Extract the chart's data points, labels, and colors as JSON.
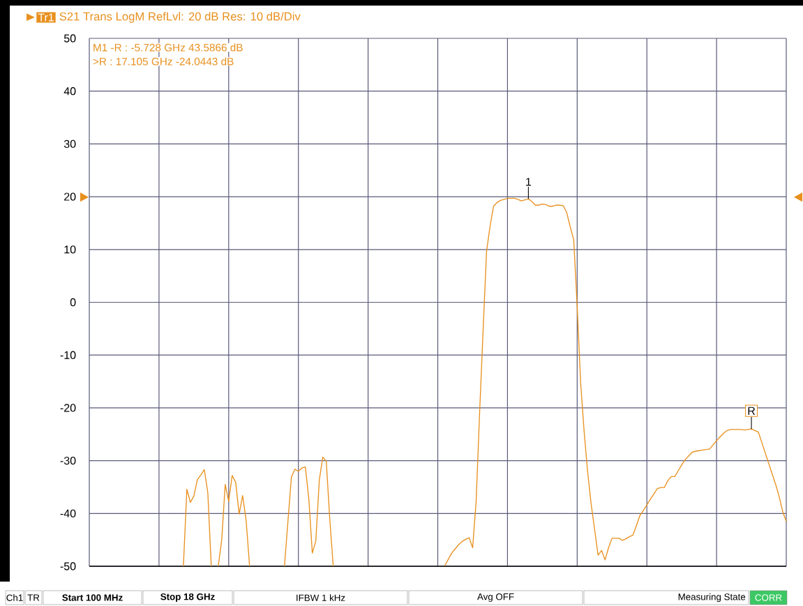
{
  "chart_data": {
    "type": "line",
    "title": "S21 Trans LogM RefLvl: 20  dB Res: 10  dB/Div",
    "categories": [
      null,
      null,
      null,
      null,
      null,
      null,
      null,
      null,
      null,
      null,
      null,
      null,
      null,
      null,
      null,
      null,
      null,
      null,
      null,
      null,
      null,
      null,
      null,
      null,
      null,
      null,
      null,
      null,
      null,
      null,
      null,
      null,
      null,
      null,
      null,
      null,
      null,
      null,
      null,
      null,
      null,
      null,
      null,
      null,
      null,
      null,
      null,
      null,
      null,
      null,
      null,
      null,
      null,
      null,
      null,
      null,
      null,
      null,
      null,
      null,
      null,
      null,
      null,
      null,
      null,
      null,
      null,
      null,
      null,
      null,
      null,
      null,
      null,
      null,
      null,
      null,
      null,
      null,
      null,
      null,
      null,
      null,
      null,
      null,
      null,
      null,
      null,
      null,
      null,
      null,
      null,
      null,
      null,
      null,
      null,
      null,
      null,
      null,
      null,
      null,
      null,
      null,
      null,
      null,
      null,
      null,
      null,
      null,
      null,
      null,
      null,
      null,
      null,
      null,
      null,
      null,
      null,
      null,
      null,
      null,
      null,
      null,
      null,
      null,
      null,
      null,
      null,
      null,
      null,
      null,
      null,
      null,
      null,
      null,
      null,
      null,
      null,
      null,
      null,
      null,
      null,
      null,
      null,
      null,
      null,
      null,
      null,
      null,
      null,
      null,
      null,
      null,
      null,
      null,
      null,
      null,
      null,
      null,
      null,
      null,
      null,
      null,
      null,
      null,
      null,
      null,
      null,
      null,
      null,
      null,
      null,
      null,
      null,
      null,
      null,
      null,
      null,
      null,
      null,
      null,
      null,
      null,
      null,
      null,
      null,
      null,
      null,
      null,
      null,
      null,
      null,
      null,
      null,
      null,
      null,
      null,
      null,
      null,
      null,
      null,
      null
    ],
    "ylim": [
      -50,
      50
    ],
    "yticks": [
      -50,
      -40,
      -30,
      -20,
      -10,
      0,
      10,
      20,
      30,
      40,
      50
    ],
    "tick_labels": "y",
    "grid": true,
    "line_style": "solid",
    "marker": "none",
    "series": [
      {
        "color": "#e8901e",
        "values": [
          null,
          null,
          null,
          null,
          null,
          null,
          null,
          null,
          null,
          null,
          null,
          null,
          null,
          null,
          null,
          null,
          null,
          null,
          null,
          null,
          null,
          null,
          null,
          null,
          null,
          null,
          null,
          -50,
          -35.4,
          -37.9,
          -36.7,
          -33.6,
          -32.7,
          -31.7,
          -36,
          -50,
          null,
          -50,
          -45,
          -34.5,
          -37.7,
          -32.8,
          -34.1,
          -40.1,
          -36.6,
          -41.3,
          -50,
          null,
          null,
          null,
          null,
          null,
          null,
          null,
          null,
          null,
          -50,
          -41.5,
          -33.1,
          -31.6,
          -32.0,
          -31.4,
          -31.2,
          -37.3,
          -47.5,
          -45.2,
          -33.7,
          -29.3,
          -30.1,
          -41.0,
          -50,
          null,
          null,
          null,
          null,
          null,
          null,
          null,
          null,
          null,
          null,
          null,
          null,
          null,
          null,
          null,
          null,
          null,
          null,
          null,
          null,
          null,
          null,
          null,
          null,
          null,
          null,
          null,
          null,
          null,
          null,
          null,
          -49.9,
          -48.7,
          -47.5,
          -46.7,
          -45.9,
          -45.3,
          -44.9,
          -44.6,
          -46.5,
          -37.8,
          -21.0,
          -5.4,
          9.7,
          14.4,
          18.2,
          18.9,
          19.3,
          19.5,
          19.7,
          19.7,
          19.7,
          19.5,
          19.2,
          19.4,
          19.6,
          19.1,
          18.4,
          18.4,
          18.6,
          18.5,
          18.2,
          18.2,
          18.4,
          18.4,
          18.3,
          17.0,
          14.3,
          11.9,
          -0.7,
          -15.3,
          -24.5,
          -32.1,
          -38.2,
          -43.0,
          -47.9,
          -47.0,
          -48.8,
          -46.5,
          -44.7,
          -44.7,
          -44.7,
          -45.1,
          -44.8,
          -44.4,
          -44.1,
          -42.3,
          -40.4,
          -39.4,
          -38.4,
          -37.3,
          -36.3,
          -35.3,
          -35.1,
          -35.1,
          -33.8,
          -33.0,
          -33.0,
          -31.9,
          -30.8,
          -29.8,
          -29.1,
          -28.4,
          -28.2,
          -28.1,
          -28.0,
          -27.9,
          -27.8,
          -27.0,
          -26.2,
          -25.5,
          -24.8,
          -24.3,
          -24.1,
          -24.1,
          -24.1,
          -24.1,
          -24.2,
          -24.1,
          -24.0,
          -24.3,
          -24.6,
          -26.6,
          -28.6,
          -30.6,
          -32.6,
          -34.6,
          -36.9,
          -39.7,
          -41.5
        ]
      }
    ],
    "annotations": [
      "Tr1",
      "M1 -R :  -5.728 GHz  43.5866  dB",
      ">R    :  17.105 GHz -24.0443  dB",
      {
        "text": "1",
        "y": 19.6
      },
      {
        "text": "R",
        "y": -24.0
      },
      "Ch1",
      "TR",
      "**Start 100 MHz**",
      "**Stop 18 GHz**",
      "IFBW 1 kHz",
      "Avg OFF",
      "Measuring State",
      "CORR"
    ]
  }
}
